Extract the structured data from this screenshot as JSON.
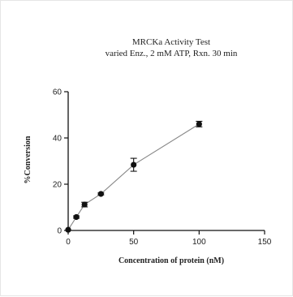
{
  "chart_data": {
    "type": "scatter",
    "title": "MRCKa Activity Test",
    "subtitle": "varied Enz., 2 mM ATP, Rxn. 30 min",
    "xlabel": "Concentration of protein (nM)",
    "ylabel": "%Conversion",
    "xlim": [
      0,
      150
    ],
    "ylim": [
      0,
      60
    ],
    "x_ticks": [
      0,
      50,
      100,
      150
    ],
    "y_ticks": [
      0,
      20,
      40,
      60
    ],
    "x_tick_labels": [
      "0",
      "50",
      "100",
      "150"
    ],
    "y_tick_labels": [
      "0",
      "20",
      "40",
      "60"
    ],
    "grid": false,
    "series": [
      {
        "connect": true,
        "color": "#111111",
        "line_color": "#888888",
        "x": [
          0,
          6.25,
          12.5,
          25,
          50,
          100
        ],
        "y": [
          0.3,
          5.8,
          11.2,
          15.8,
          28.4,
          46.0
        ],
        "error": [
          0,
          0.5,
          1.0,
          0.4,
          2.8,
          1.2
        ]
      }
    ]
  }
}
